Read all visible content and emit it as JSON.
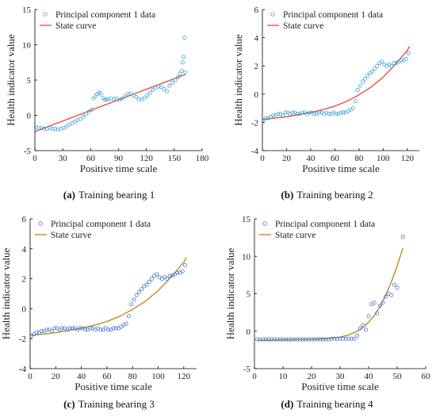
{
  "chart_data": [
    {
      "type": "scatter",
      "caption_letter": "(a)",
      "caption_text": "Training bearing 1",
      "xlabel": "Positive time scale",
      "ylabel": "Health indicator value",
      "xlim": [
        0,
        180
      ],
      "ylim": [
        -5,
        15
      ],
      "xticks": [
        0,
        30,
        60,
        90,
        120,
        150,
        180
      ],
      "yticks": [
        -5,
        0,
        5,
        10,
        15
      ],
      "grid": false,
      "legend_position": "top-left",
      "colors": {
        "points": "#3aa0d8",
        "curve": "#e8472a"
      },
      "series": [
        {
          "name": "Principal component 1 data",
          "kind": "points",
          "x": [
            1,
            4,
            7,
            10,
            13,
            16,
            19,
            22,
            25,
            28,
            31,
            34,
            37,
            40,
            43,
            46,
            49,
            52,
            55,
            58,
            61,
            63,
            65,
            67,
            69,
            71,
            73,
            75,
            77,
            79,
            82,
            85,
            88,
            91,
            94,
            97,
            100,
            103,
            106,
            109,
            112,
            115,
            118,
            121,
            124,
            127,
            130,
            133,
            136,
            139,
            142,
            145,
            148,
            151,
            154,
            156,
            158,
            159,
            160,
            161,
            162
          ],
          "y": [
            -1.7,
            -1.8,
            -1.8,
            -1.9,
            -1.9,
            -1.8,
            -1.9,
            -1.9,
            -2.0,
            -1.9,
            -1.8,
            -1.6,
            -1.3,
            -1.1,
            -0.9,
            -0.7,
            -0.5,
            -0.2,
            0.2,
            0.5,
            0.8,
            2.4,
            2.7,
            3.0,
            3.2,
            3.1,
            2.5,
            2.2,
            2.2,
            2.3,
            2.4,
            2.3,
            2.4,
            2.2,
            2.4,
            2.7,
            3.0,
            3.1,
            2.8,
            2.6,
            2.3,
            2.2,
            2.5,
            2.8,
            3.2,
            3.6,
            3.9,
            4.1,
            4.0,
            3.7,
            3.4,
            4.2,
            4.6,
            5.0,
            5.4,
            5.9,
            6.3,
            7.5,
            8.3,
            11.0,
            6.1
          ]
        },
        {
          "name": "State curve",
          "kind": "line",
          "x": [
            0,
            162
          ],
          "y": [
            -2.3,
            5.8
          ]
        }
      ]
    },
    {
      "type": "scatter",
      "caption_letter": "(b)",
      "caption_text": "Training bearing 2",
      "xlabel": "Positive time scale",
      "ylabel": "Health indicator value",
      "xlim": [
        0,
        130
      ],
      "ylim": [
        -4,
        6
      ],
      "xticks": [
        0,
        20,
        40,
        60,
        80,
        100,
        120
      ],
      "yticks": [
        -4,
        -2,
        0,
        2,
        4,
        6
      ],
      "grid": false,
      "legend_position": "top-left",
      "colors": {
        "points": "#3aa0d8",
        "curve": "#e8472a"
      },
      "series": [
        {
          "name": "Principal component 1 data",
          "kind": "points",
          "x": [
            1,
            3,
            5,
            7,
            9,
            11,
            13,
            15,
            17,
            19,
            21,
            23,
            25,
            27,
            29,
            31,
            33,
            35,
            37,
            39,
            41,
            43,
            45,
            47,
            49,
            51,
            53,
            55,
            57,
            59,
            61,
            63,
            65,
            67,
            69,
            71,
            73,
            75,
            77,
            79,
            81,
            83,
            85,
            87,
            89,
            91,
            93,
            95,
            97,
            99,
            101,
            103,
            105,
            107,
            109,
            111,
            113,
            115,
            117,
            119,
            121
          ],
          "y": [
            -1.8,
            -1.7,
            -1.7,
            -1.6,
            -1.5,
            -1.5,
            -1.4,
            -1.4,
            -1.5,
            -1.3,
            -1.3,
            -1.4,
            -1.3,
            -1.3,
            -1.4,
            -1.4,
            -1.3,
            -1.3,
            -1.4,
            -1.3,
            -1.3,
            -1.4,
            -1.4,
            -1.3,
            -1.3,
            -1.4,
            -1.3,
            -1.4,
            -1.4,
            -1.3,
            -1.4,
            -1.4,
            -1.3,
            -1.3,
            -1.3,
            -1.2,
            -1.1,
            -1.0,
            -0.5,
            0.3,
            0.6,
            0.9,
            1.1,
            1.3,
            1.5,
            1.6,
            1.8,
            2.0,
            2.2,
            2.3,
            2.1,
            2.0,
            2.1,
            2.0,
            2.2,
            2.2,
            2.3,
            2.4,
            2.4,
            2.5,
            2.9
          ]
        },
        {
          "name": "State curve",
          "kind": "curve",
          "x": [
            0,
            10,
            20,
            30,
            40,
            50,
            60,
            70,
            80,
            90,
            100,
            110,
            120,
            122
          ],
          "y": [
            -1.8,
            -1.7,
            -1.6,
            -1.45,
            -1.3,
            -1.1,
            -0.85,
            -0.5,
            -0.05,
            0.5,
            1.2,
            2.1,
            3.1,
            3.4
          ]
        }
      ]
    },
    {
      "type": "scatter",
      "caption_letter": "(c)",
      "caption_text": "Training bearing 3",
      "xlabel": "Positive time scale",
      "ylabel": "Health indicator value",
      "xlim": [
        0,
        130
      ],
      "ylim": [
        -4,
        6
      ],
      "xticks": [
        0,
        20,
        40,
        60,
        80,
        100,
        120
      ],
      "yticks": [
        -4,
        -2,
        0,
        2,
        4,
        6
      ],
      "grid": false,
      "legend_position": "top-left",
      "colors": {
        "points": "#3a6fd8",
        "curve": "#b8860b"
      },
      "series": [
        {
          "name": "Principal component 1 data",
          "kind": "points",
          "x": [
            1,
            3,
            5,
            7,
            9,
            11,
            13,
            15,
            17,
            19,
            21,
            23,
            25,
            27,
            29,
            31,
            33,
            35,
            37,
            39,
            41,
            43,
            45,
            47,
            49,
            51,
            53,
            55,
            57,
            59,
            61,
            63,
            65,
            67,
            69,
            71,
            73,
            75,
            77,
            79,
            81,
            83,
            85,
            87,
            89,
            91,
            93,
            95,
            97,
            99,
            101,
            103,
            105,
            107,
            109,
            111,
            113,
            115,
            117,
            119,
            121
          ],
          "y": [
            -1.8,
            -1.7,
            -1.6,
            -1.6,
            -1.5,
            -1.5,
            -1.4,
            -1.4,
            -1.5,
            -1.3,
            -1.3,
            -1.4,
            -1.3,
            -1.3,
            -1.4,
            -1.3,
            -1.3,
            -1.3,
            -1.4,
            -1.3,
            -1.3,
            -1.4,
            -1.4,
            -1.3,
            -1.3,
            -1.4,
            -1.3,
            -1.4,
            -1.4,
            -1.3,
            -1.4,
            -1.4,
            -1.3,
            -1.3,
            -1.3,
            -1.2,
            -1.1,
            -1.0,
            -0.5,
            0.3,
            0.6,
            0.9,
            1.1,
            1.3,
            1.5,
            1.6,
            1.8,
            2.0,
            2.2,
            2.3,
            2.1,
            2.0,
            2.1,
            2.0,
            2.2,
            2.2,
            2.3,
            2.4,
            2.4,
            2.5,
            2.9
          ]
        },
        {
          "name": "State curve",
          "kind": "curve",
          "x": [
            0,
            10,
            20,
            30,
            40,
            50,
            60,
            70,
            80,
            90,
            100,
            110,
            120,
            122
          ],
          "y": [
            -1.8,
            -1.7,
            -1.6,
            -1.45,
            -1.3,
            -1.1,
            -0.85,
            -0.5,
            -0.05,
            0.5,
            1.2,
            2.1,
            3.1,
            3.4
          ]
        }
      ]
    },
    {
      "type": "scatter",
      "caption_letter": "(d)",
      "caption_text": "Training bearing 4",
      "xlabel": "Positive time scale",
      "ylabel": "Health indicator value",
      "xlim": [
        0,
        60
      ],
      "ylim": [
        -5,
        15
      ],
      "xticks": [
        0,
        10,
        20,
        30,
        40,
        50,
        60
      ],
      "yticks": [
        -5,
        0,
        5,
        10,
        15
      ],
      "grid": false,
      "legend_position": "top-left",
      "colors": {
        "points": "#3a6fd8",
        "curve": "#b8860b"
      },
      "series": [
        {
          "name": "Principal component 1 data",
          "kind": "points",
          "x": [
            1,
            2,
            3,
            4,
            5,
            6,
            7,
            8,
            9,
            10,
            11,
            12,
            13,
            14,
            15,
            16,
            17,
            18,
            19,
            20,
            21,
            22,
            23,
            24,
            25,
            26,
            27,
            28,
            29,
            30,
            31,
            32,
            33,
            34,
            35,
            36,
            37,
            38,
            39,
            40,
            41,
            42,
            43,
            44,
            45,
            46,
            47,
            48,
            49,
            50,
            51,
            52
          ],
          "y": [
            -1.1,
            -1.1,
            -1.1,
            -1.1,
            -1.1,
            -1.1,
            -1.1,
            -1.1,
            -1.1,
            -1.1,
            -1.1,
            -1.1,
            -1.1,
            -1.1,
            -1.1,
            -1.1,
            -1.1,
            -1.1,
            -1.1,
            -1.1,
            -1.1,
            -1.1,
            -1.1,
            -1.1,
            -1.1,
            -1.1,
            -1.0,
            -1.0,
            -1.0,
            -1.0,
            -1.0,
            -1.0,
            -1.0,
            -1.0,
            -1.0,
            -0.6,
            0.4,
            0.8,
            0.2,
            2.0,
            3.6,
            3.8,
            2.4,
            3.4,
            3.8,
            4.6,
            5.0,
            4.8,
            6.2,
            5.8,
            null,
            12.6
          ]
        },
        {
          "name": "State curve",
          "kind": "curve",
          "x": [
            1,
            10,
            20,
            25,
            30,
            33,
            36,
            38,
            40,
            42,
            44,
            46,
            48,
            50,
            52
          ],
          "y": [
            -1.2,
            -1.15,
            -1.1,
            -1.0,
            -0.8,
            -0.5,
            0.0,
            0.5,
            1.2,
            2.1,
            3.3,
            4.8,
            6.6,
            8.7,
            11.1
          ]
        }
      ]
    }
  ]
}
